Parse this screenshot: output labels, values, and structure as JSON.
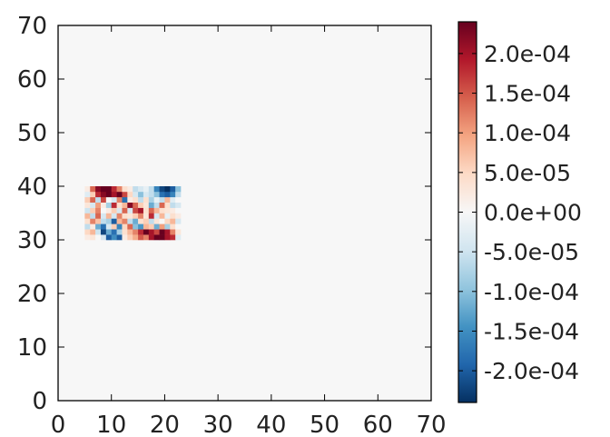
{
  "chart_data": {
    "type": "heatmap",
    "title": "",
    "xlabel": "",
    "ylabel": "",
    "xlim": [
      0,
      70
    ],
    "ylim": [
      0,
      70
    ],
    "x_ticks": [
      0,
      10,
      20,
      30,
      40,
      50,
      60,
      70
    ],
    "y_ticks": [
      0,
      10,
      20,
      30,
      40,
      50,
      60,
      70
    ],
    "x_tick_labels": [
      "0",
      "10",
      "20",
      "30",
      "40",
      "50",
      "60",
      "70"
    ],
    "y_tick_labels": [
      "0",
      "10",
      "20",
      "30",
      "40",
      "50",
      "60",
      "70"
    ],
    "background_value": 0.0,
    "colormap": "RdBu_r",
    "colorbar": {
      "vmin": -0.00024,
      "vmax": 0.00024,
      "ticks": [
        -0.0002,
        -0.00015,
        -0.0001,
        -5e-05,
        0.0,
        5e-05,
        0.0001,
        0.00015,
        0.0002
      ],
      "tick_labels": [
        "-2.0e-04",
        "-1.5e-04",
        "-1.0e-04",
        "-5.0e-05",
        "0.0e+00",
        "5.0e-05",
        "1.0e-04",
        "1.5e-04",
        "2.0e-04"
      ]
    },
    "patch": {
      "x_start": 5,
      "y_start": 30,
      "cols": 18,
      "rows": 10,
      "values": [
        [
          2e-05,
          3e-05,
          0.0,
          -4e-05,
          -0.0002,
          -0.00015,
          -0.0002,
          2e-05,
          6e-05,
          9e-05,
          0.00015,
          0.00012,
          0.0002,
          0.00024,
          0.00024,
          0.0002,
          0.00018,
          -3e-05
        ],
        [
          5e-05,
          8e-05,
          -5e-05,
          -0.00022,
          -0.00012,
          -0.00018,
          -8e-05,
          4e-05,
          8e-05,
          0.00012,
          0.00018,
          0.00024,
          0.0002,
          0.00016,
          0.00024,
          0.0002,
          0.00012,
          3e-05
        ],
        [
          -6e-05,
          2e-05,
          -0.00012,
          -0.00018,
          -4e-05,
          6e-05,
          -0.00016,
          5e-05,
          0.00014,
          -0.0001,
          -0.00014,
          8e-05,
          6e-05,
          -0.00012,
          0.0001,
          -8e-05,
          4e-05,
          0.0
        ],
        [
          4e-05,
          0.00012,
          7e-05,
          -6e-05,
          -8e-05,
          -0.0002,
          8e-05,
          0.00012,
          -6e-05,
          -0.00012,
          4e-05,
          6e-05,
          -6e-05,
          3e-05,
          0.0,
          5e-05,
          8e-05,
          -4e-05
        ],
        [
          8e-05,
          -6e-05,
          0.00014,
          -4e-05,
          8e-05,
          -4e-05,
          0.00012,
          4e-05,
          3e-05,
          6e-05,
          0.00012,
          3e-05,
          0.00018,
          -4e-05,
          8e-05,
          -2e-05,
          4e-05,
          2e-05
        ],
        [
          -5e-05,
          6e-05,
          0.00012,
          0.0,
          2e-05,
          6e-05,
          -4e-05,
          0.00014,
          -4e-05,
          0.00016,
          0.0002,
          4e-05,
          0.00014,
          8e-05,
          4e-05,
          3e-05,
          2e-05,
          0.0
        ],
        [
          3e-05,
          -4e-05,
          0.0001,
          2e-05,
          -8e-05,
          0.00018,
          4e-05,
          8e-05,
          0.00022,
          0.00014,
          6e-05,
          3e-05,
          -0.00012,
          -6e-05,
          0.00014,
          4e-05,
          -6e-05,
          -4e-05
        ],
        [
          6e-05,
          0.00014,
          -6e-05,
          0.00016,
          0.0,
          -4e-05,
          0.00012,
          -0.00018,
          2e-05,
          4e-05,
          -6e-05,
          4e-05,
          -8e-05,
          -2e-05,
          -6e-05,
          8e-05,
          -3e-05,
          0.0
        ],
        [
          -3e-05,
          6e-05,
          0.00018,
          0.00022,
          0.00024,
          0.0002,
          0.00024,
          0.00016,
          5e-05,
          -4e-05,
          -0.0001,
          -4e-05,
          -6e-05,
          -0.0001,
          -0.00018,
          -0.0002,
          -0.00016,
          -6e-05
        ],
        [
          2e-05,
          0.00014,
          0.00022,
          0.00024,
          0.00024,
          0.00018,
          0.00012,
          4e-05,
          2e-05,
          -6e-05,
          -4e-05,
          -2e-05,
          -6e-05,
          -0.00016,
          -0.00022,
          -0.00024,
          -0.0002,
          -0.0001
        ]
      ]
    }
  }
}
